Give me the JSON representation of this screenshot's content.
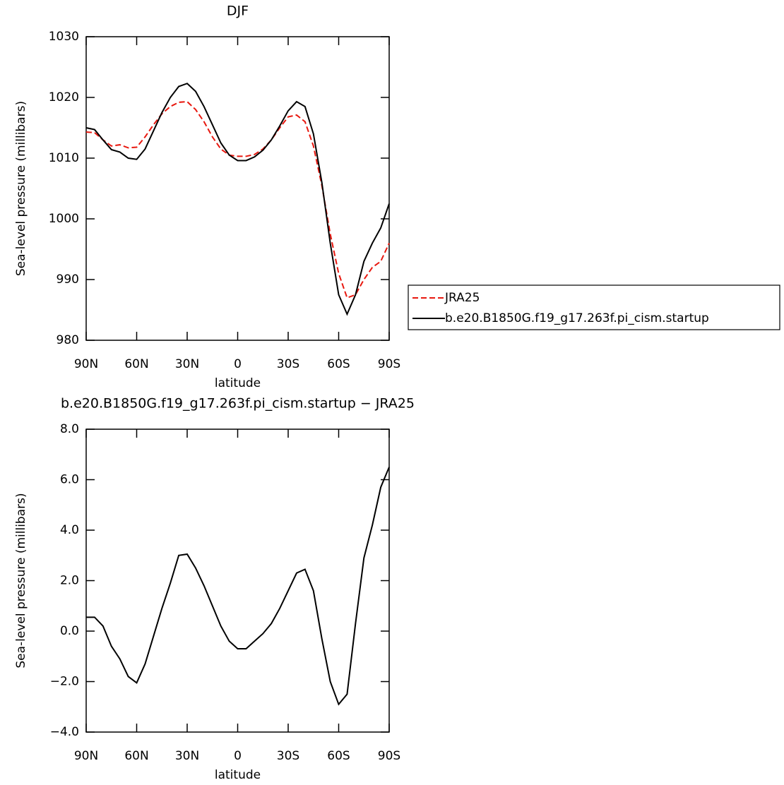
{
  "chart_data": [
    {
      "type": "line",
      "title": "DJF",
      "xlabel": "latitude",
      "ylabel": "Sea-level pressure (millibars)",
      "x": [
        90,
        85,
        80,
        75,
        70,
        65,
        60,
        55,
        50,
        45,
        40,
        35,
        30,
        25,
        20,
        15,
        10,
        5,
        0,
        -5,
        -10,
        -15,
        -20,
        -25,
        -30,
        -35,
        -40,
        -45,
        -50,
        -55,
        -60,
        -65,
        -70,
        -75,
        -80,
        -85,
        -90
      ],
      "xlim": [
        90,
        -90
      ],
      "xticks": [
        {
          "value": 90,
          "label": "90N"
        },
        {
          "value": 60,
          "label": "60N"
        },
        {
          "value": 30,
          "label": "30N"
        },
        0,
        {
          "value": -30,
          "label": "30S"
        },
        {
          "value": -60,
          "label": "60S"
        },
        {
          "value": -90,
          "label": "90S"
        }
      ],
      "ylim": [
        980,
        1030
      ],
      "yticks": [
        980,
        990,
        1000,
        1010,
        1020,
        1030
      ],
      "series": [
        {
          "name": "JRA25",
          "color": "#e8180f",
          "dash": true,
          "values": [
            1014.3,
            1014.2,
            1013,
            1012,
            1012.2,
            1011.7,
            1011.8,
            1013.5,
            1015.5,
            1017.3,
            1018.5,
            1019.2,
            1019.3,
            1018,
            1016,
            1013.5,
            1011.5,
            1010.5,
            1010.3,
            1010.3,
            1010.6,
            1011.5,
            1013,
            1015,
            1016.8,
            1017.1,
            1016,
            1012,
            1005.5,
            997.5,
            991,
            987,
            987.5,
            990,
            992,
            993,
            996
          ]
        },
        {
          "name": "b.e20.B1850G.f19_g17.263f.pi_cism.startup",
          "color": "#000000",
          "dash": false,
          "values": [
            1015,
            1014.7,
            1013,
            1011.4,
            1011,
            1010,
            1009.8,
            1011.5,
            1014.5,
            1017.5,
            1020,
            1021.8,
            1022.3,
            1021,
            1018.5,
            1015.5,
            1012.5,
            1010.5,
            1009.6,
            1009.6,
            1010.2,
            1011.3,
            1013,
            1015.3,
            1017.8,
            1019.3,
            1018.5,
            1014,
            1006,
            996,
            987.5,
            984.3,
            987.5,
            993,
            996,
            998.5,
            1002.5
          ]
        }
      ]
    },
    {
      "type": "line",
      "title": "b.e20.B1850G.f19_g17.263f.pi_cism.startup − JRA25",
      "xlabel": "latitude",
      "ylabel": "Sea-level pressure (millibars)",
      "x": [
        90,
        85,
        80,
        75,
        70,
        65,
        60,
        55,
        50,
        45,
        40,
        35,
        30,
        25,
        20,
        15,
        10,
        5,
        0,
        -5,
        -10,
        -15,
        -20,
        -25,
        -30,
        -35,
        -40,
        -45,
        -50,
        -55,
        -60,
        -65,
        -70,
        -75,
        -80,
        -85,
        -90
      ],
      "xlim": [
        90,
        -90
      ],
      "xticks": [
        {
          "value": 90,
          "label": "90N"
        },
        {
          "value": 60,
          "label": "60N"
        },
        {
          "value": 30,
          "label": "30N"
        },
        0,
        {
          "value": -30,
          "label": "30S"
        },
        {
          "value": -60,
          "label": "60S"
        },
        {
          "value": -90,
          "label": "90S"
        }
      ],
      "ylim": [
        -4,
        8
      ],
      "yticks": [
        {
          "value": -4,
          "label": "−4.0"
        },
        {
          "value": -2,
          "label": "−2.0"
        },
        {
          "value": 0,
          "label": "0.0"
        },
        {
          "value": 2,
          "label": "2.0"
        },
        {
          "value": 4,
          "label": "4.0"
        },
        {
          "value": 6,
          "label": "6.0"
        },
        {
          "value": 8,
          "label": "8.0"
        }
      ],
      "series": [
        {
          "color": "#000000",
          "dash": false,
          "values": [
            0.55,
            0.55,
            0.2,
            -0.6,
            -1.1,
            -1.8,
            -2.05,
            -1.3,
            -0.2,
            0.9,
            1.9,
            3.0,
            3.05,
            2.5,
            1.8,
            1.0,
            0.2,
            -0.4,
            -0.7,
            -0.7,
            -0.4,
            -0.1,
            0.3,
            0.9,
            1.6,
            2.3,
            2.45,
            1.6,
            -0.3,
            -2.0,
            -2.9,
            -2.5,
            0.3,
            2.9,
            4.2,
            5.7,
            6.5
          ]
        }
      ]
    }
  ]
}
